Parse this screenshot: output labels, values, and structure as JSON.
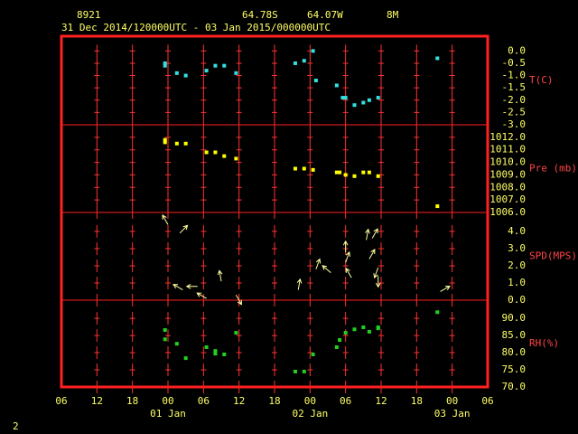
{
  "header": {
    "station": "8921",
    "latitude": "64.78S",
    "longitude": "64.07W",
    "elevation": "8M",
    "period": "31 Dec 2014/120000UTC - 03 Jan 2015/000000UTC",
    "page": "2"
  },
  "x_axis": {
    "xlim": [
      6,
      78
    ],
    "xticks": [
      {
        "value": 6,
        "label": "06"
      },
      {
        "value": 12,
        "label": "12"
      },
      {
        "value": 18,
        "label": "18"
      },
      {
        "value": 24,
        "label": "00"
      },
      {
        "value": 30,
        "label": "06"
      },
      {
        "value": 36,
        "label": "12"
      },
      {
        "value": 42,
        "label": "18"
      },
      {
        "value": 48,
        "label": "00"
      },
      {
        "value": 54,
        "label": "06"
      },
      {
        "value": 60,
        "label": "12"
      },
      {
        "value": 66,
        "label": "18"
      },
      {
        "value": 72,
        "label": "00"
      },
      {
        "value": 78,
        "label": "06"
      }
    ],
    "day_labels": [
      {
        "value": 24,
        "label": "01 Jan"
      },
      {
        "value": 48,
        "label": "02 Jan"
      },
      {
        "value": 72,
        "label": "03 Jan"
      }
    ]
  },
  "chart_data": [
    {
      "type": "scatter",
      "y_label": "T(C)",
      "color": "#33e0e0",
      "ylim": [
        -3,
        0.6
      ],
      "yticks": [
        {
          "value": 0,
          "label": "0.0"
        },
        -0.5,
        {
          "value": -1,
          "label": "-1.0"
        },
        -1.5,
        {
          "value": -2,
          "label": "-2.0"
        },
        -2.5,
        {
          "value": -3,
          "label": "-3.0"
        }
      ],
      "x": [
        23.5,
        23.5,
        25.5,
        27,
        30.5,
        32,
        33.5,
        35.5,
        45.5,
        47,
        48.5,
        49,
        52.5,
        53.5,
        54,
        55.5,
        57,
        58,
        59.5,
        69.5
      ],
      "values": [
        -0.5,
        -0.6,
        -0.9,
        -1.0,
        -0.8,
        -0.6,
        -0.6,
        -0.9,
        -0.5,
        -0.4,
        0.0,
        -1.2,
        -1.4,
        -1.9,
        -1.9,
        -2.2,
        -2.1,
        -2.0,
        -1.9,
        -0.3
      ]
    },
    {
      "type": "scatter",
      "y_label": "Pre (mb)",
      "color": "#ffff00",
      "ylim": [
        1006,
        1013
      ],
      "yticks": [
        {
          "value": 1012,
          "label": "1012.0"
        },
        {
          "value": 1011,
          "label": "1011.0"
        },
        {
          "value": 1010,
          "label": "1010.0"
        },
        {
          "value": 1009,
          "label": "1009.0"
        },
        {
          "value": 1008,
          "label": "1008.0"
        },
        {
          "value": 1007,
          "label": "1007.0"
        },
        {
          "value": 1006,
          "label": "1006.0"
        }
      ],
      "x": [
        23.5,
        23.5,
        25.5,
        27,
        30.5,
        32,
        33.5,
        35.5,
        45.5,
        47,
        48.5,
        52.5,
        53,
        54,
        55.5,
        57,
        58,
        59.5,
        69.5
      ],
      "values": [
        1011.6,
        1011.8,
        1011.5,
        1011.5,
        1010.8,
        1010.8,
        1010.5,
        1010.3,
        1009.5,
        1009.5,
        1009.4,
        1009.2,
        1009.2,
        1009.0,
        1008.9,
        1009.2,
        1009.2,
        1008.9,
        1006.5
      ]
    },
    {
      "type": "vector",
      "y_label": "SPD(MPS)",
      "color": "#ffffa0",
      "ylim": [
        0,
        5.1
      ],
      "yticks": [
        {
          "value": 4,
          "label": "4.0"
        },
        {
          "value": 3,
          "label": "3.0"
        },
        {
          "value": 2,
          "label": "2.0"
        },
        {
          "value": 1,
          "label": "1.0"
        },
        {
          "value": 0,
          "label": "0.0"
        }
      ],
      "x": [
        24,
        26,
        26.5,
        29,
        30.5,
        33,
        35.5,
        46,
        49,
        51.5,
        54,
        54,
        55,
        57.5,
        58.5,
        58,
        59.5,
        59.5,
        70
      ],
      "values": [
        4.4,
        3.9,
        0.6,
        0.8,
        0.1,
        1.1,
        0.3,
        0.6,
        1.8,
        1.6,
        2.8,
        2.2,
        1.3,
        3.5,
        3.6,
        2.4,
        1.9,
        1.4,
        0.5
      ],
      "directions": [
        330,
        45,
        300,
        270,
        300,
        350,
        150,
        10,
        20,
        310,
        0,
        20,
        330,
        10,
        30,
        30,
        200,
        180,
        60
      ]
    },
    {
      "type": "scatter",
      "y_label": "RH(%)",
      "color": "#22d022",
      "ylim": [
        70,
        95.3
      ],
      "yticks": [
        {
          "value": 90,
          "label": "90.0"
        },
        {
          "value": 85,
          "label": "85.0"
        },
        {
          "value": 80,
          "label": "80.0"
        },
        {
          "value": 75,
          "label": "75.0"
        },
        {
          "value": 70,
          "label": "70.0"
        }
      ],
      "x": [
        23.5,
        23.5,
        25.5,
        27,
        30.5,
        32,
        32,
        33.5,
        35.5,
        45.5,
        47,
        48.5,
        52.5,
        53,
        54,
        55.5,
        57,
        58,
        59.5,
        59.5,
        69.5
      ],
      "values": [
        86.6,
        83.9,
        82.6,
        78.4,
        81.6,
        80.5,
        79.7,
        79.5,
        85.8,
        74.5,
        74.5,
        79.5,
        81.6,
        83.7,
        85.8,
        86.8,
        87.4,
        86.1,
        87.1,
        87.4,
        91.8
      ]
    }
  ]
}
